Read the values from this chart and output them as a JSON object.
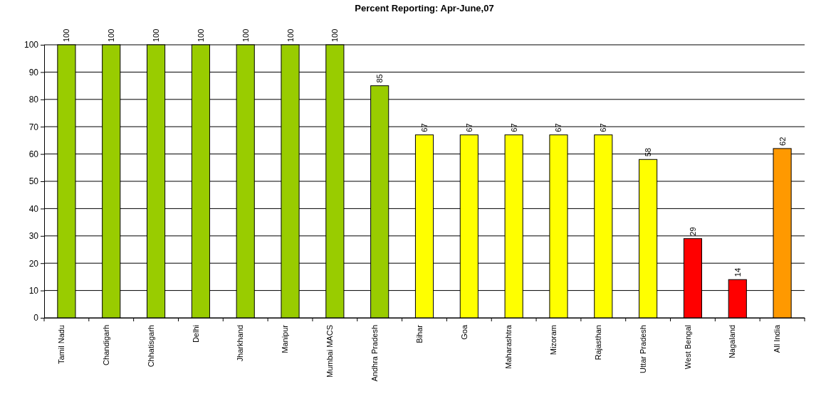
{
  "chart_data": {
    "type": "bar",
    "title": "Percent Reporting: Apr-June,07",
    "categories": [
      "Tamil Nadu",
      "Chandigarh",
      "Chhatisgarh",
      "Delhi",
      "Jharkhand",
      "Manipur",
      "Mumbai MACS",
      "Andhra Pradesh",
      "Bihar",
      "Goa",
      "Maharashtra",
      "Mizoram",
      "Rajasthan",
      "Uttar Pradesh",
      "West Bengal",
      "Nagaland",
      "All India"
    ],
    "values": [
      100,
      100,
      100,
      100,
      100,
      100,
      100,
      85,
      67,
      67,
      67,
      67,
      67,
      58,
      29,
      14,
      62
    ],
    "colors": [
      "#99cc00",
      "#99cc00",
      "#99cc00",
      "#99cc00",
      "#99cc00",
      "#99cc00",
      "#99cc00",
      "#99cc00",
      "#ffff00",
      "#ffff00",
      "#ffff00",
      "#ffff00",
      "#ffff00",
      "#ffff00",
      "#ff0000",
      "#ff0000",
      "#ff9900"
    ],
    "ylim": [
      0,
      100
    ],
    "yticks": [
      0,
      10,
      20,
      30,
      40,
      50,
      60,
      70,
      80,
      90,
      100
    ],
    "grid": "y",
    "data_labels": true
  }
}
